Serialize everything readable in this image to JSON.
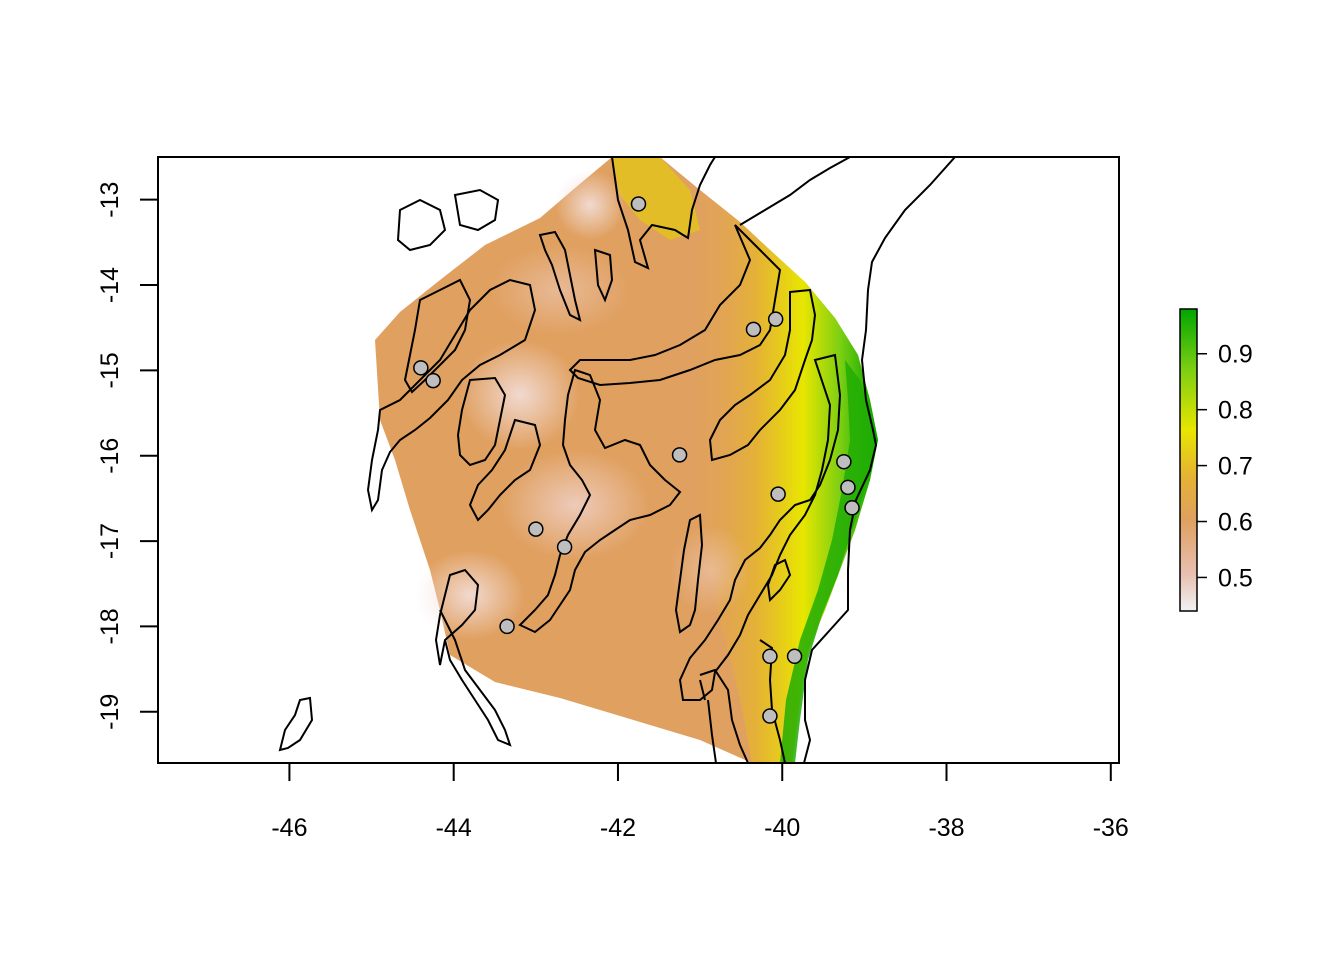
{
  "map": {
    "x_axis": {
      "range": [
        -47.6,
        -35.9
      ],
      "ticks": [
        {
          "value": -46,
          "label": "-46"
        },
        {
          "value": -44,
          "label": "-44"
        },
        {
          "value": -42,
          "label": "-42"
        },
        {
          "value": -40,
          "label": "-40"
        },
        {
          "value": -38,
          "label": "-38"
        },
        {
          "value": -36,
          "label": "-36"
        }
      ]
    },
    "y_axis": {
      "range": [
        -19.6,
        -12.5
      ],
      "ticks": [
        {
          "value": -13,
          "label": "-13"
        },
        {
          "value": -14,
          "label": "-14"
        },
        {
          "value": -15,
          "label": "-15"
        },
        {
          "value": -16,
          "label": "-16"
        },
        {
          "value": -17,
          "label": "-17"
        },
        {
          "value": -18,
          "label": "-18"
        },
        {
          "value": -19,
          "label": "-19"
        }
      ]
    },
    "legend": {
      "range": [
        0.44,
        0.98
      ],
      "ticks": [
        {
          "value": 0.5,
          "label": "0.5"
        },
        {
          "value": 0.6,
          "label": "0.6"
        },
        {
          "value": 0.7,
          "label": "0.7"
        },
        {
          "value": 0.8,
          "label": "0.8"
        },
        {
          "value": 0.9,
          "label": "0.9"
        }
      ],
      "colors": [
        "#f2f2f2",
        "#e8b9a6",
        "#e0a060",
        "#e5b332",
        "#e8e600",
        "#7ccf12",
        "#00a600"
      ]
    },
    "sites": [
      {
        "lon": -41.75,
        "lat": -13.05
      },
      {
        "lon": -40.35,
        "lat": -14.52
      },
      {
        "lon": -40.08,
        "lat": -14.4
      },
      {
        "lon": -44.4,
        "lat": -14.97
      },
      {
        "lon": -44.25,
        "lat": -15.12
      },
      {
        "lon": -41.25,
        "lat": -15.99
      },
      {
        "lon": -39.25,
        "lat": -16.07
      },
      {
        "lon": -40.05,
        "lat": -16.45
      },
      {
        "lon": -39.2,
        "lat": -16.37
      },
      {
        "lon": -39.15,
        "lat": -16.61
      },
      {
        "lon": -43.0,
        "lat": -16.86
      },
      {
        "lon": -42.65,
        "lat": -17.07
      },
      {
        "lon": -43.35,
        "lat": -18.0
      },
      {
        "lon": -40.15,
        "lat": -18.35
      },
      {
        "lon": -39.85,
        "lat": -18.35
      },
      {
        "lon": -40.15,
        "lat": -19.05
      }
    ]
  }
}
